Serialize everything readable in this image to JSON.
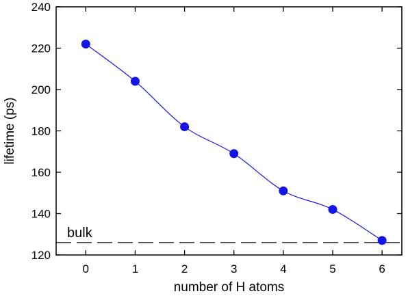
{
  "chart_data": {
    "type": "scatter",
    "title": "",
    "xlabel": "number of H atoms",
    "ylabel": "lifetime (ps)",
    "xlim": [
      -0.6,
      6.4
    ],
    "ylim": [
      120,
      240
    ],
    "x_ticks": [
      0,
      1,
      2,
      3,
      4,
      5,
      6
    ],
    "y_ticks": [
      120,
      140,
      160,
      180,
      200,
      220,
      240
    ],
    "grid": false,
    "legend": "none",
    "series": [
      {
        "x": [
          0,
          1,
          2,
          3,
          4,
          5,
          6
        ],
        "values": [
          222,
          204,
          182,
          169,
          151,
          142,
          127
        ],
        "marker": "circle",
        "fit_line": true,
        "color": "#1515e8"
      }
    ],
    "reference_line": {
      "label": "bulk",
      "y": 126,
      "style": "dashed",
      "color": "#000000"
    }
  }
}
